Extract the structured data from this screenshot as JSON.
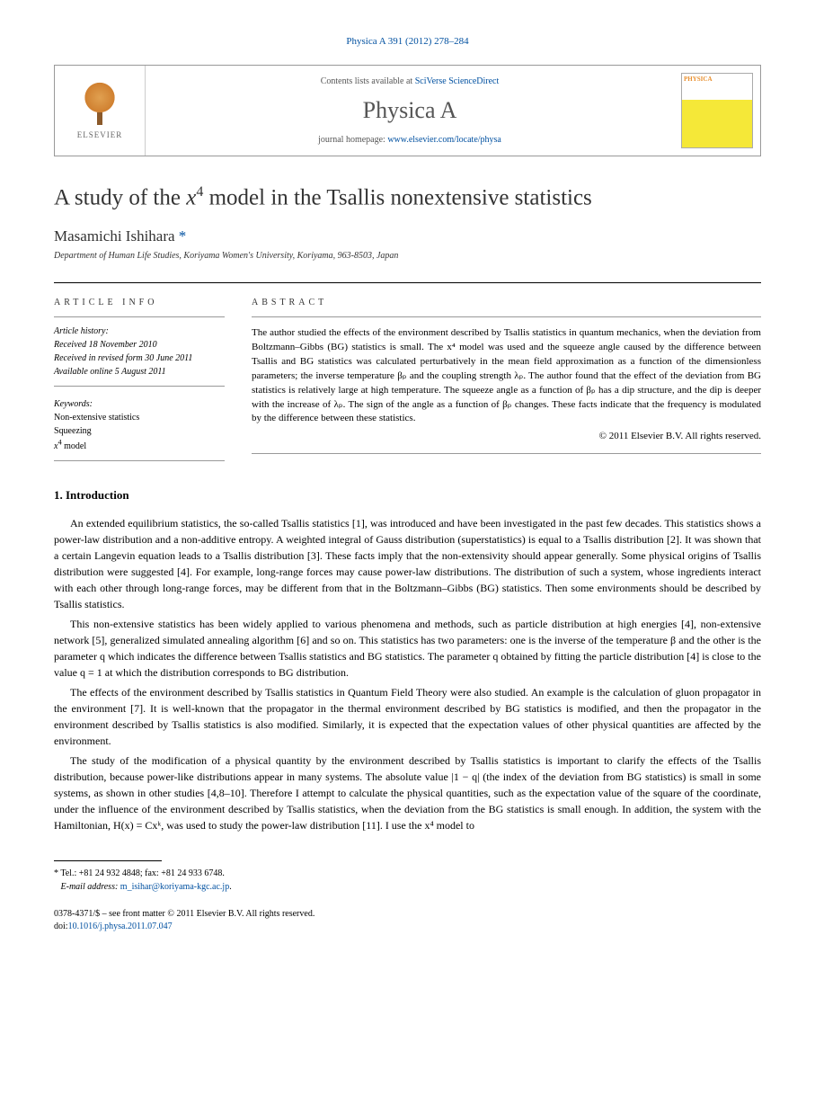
{
  "header": {
    "citation_link": "Physica A 391 (2012) 278–284",
    "contents_text": "Contents lists available at ",
    "contents_link": "SciVerse ScienceDirect",
    "journal_name": "Physica A",
    "homepage_text": "journal homepage: ",
    "homepage_link": "www.elsevier.com/locate/physa",
    "elsevier_label": "ELSEVIER",
    "cover_label": "PHYSICA"
  },
  "article": {
    "title_pre": "A study of the ",
    "title_var": "x",
    "title_sup": "4",
    "title_post": " model in the Tsallis nonextensive statistics",
    "author_name": "Masamichi Ishihara",
    "author_marker": "*",
    "affiliation": "Department of Human Life Studies, Koriyama Women's University, Koriyama, 963-8503, Japan"
  },
  "info": {
    "heading": "ARTICLE INFO",
    "history_label": "Article history:",
    "received": "Received 18 November 2010",
    "revised": "Received in revised form 30 June 2011",
    "online": "Available online 5 August 2011",
    "keywords_label": "Keywords:",
    "kw1": "Non-extensive statistics",
    "kw2": "Squeezing",
    "kw3_pre": "x",
    "kw3_sup": "4",
    "kw3_post": " model"
  },
  "abstract": {
    "heading": "ABSTRACT",
    "text": "The author studied the effects of the environment described by Tsallis statistics in quantum mechanics, when the deviation from Boltzmann–Gibbs (BG) statistics is small. The x⁴ model was used and the squeeze angle caused by the difference between Tsallis and BG statistics was calculated perturbatively in the mean field approximation as a function of the dimensionless parameters; the inverse temperature βₚ and the coupling strength λₚ. The author found that the effect of the deviation from BG statistics is relatively large at high temperature. The squeeze angle as a function of βₚ has a dip structure, and the dip is deeper with the increase of λₚ. The sign of the angle as a function of βₚ changes. These facts indicate that the frequency is modulated by the difference between these statistics.",
    "copyright": "© 2011 Elsevier B.V. All rights reserved."
  },
  "section1": {
    "heading": "1.  Introduction",
    "p1": "An extended equilibrium statistics, the so-called Tsallis statistics [1], was introduced and have been investigated in the past few decades. This statistics shows a power-law distribution and a non-additive entropy. A weighted integral of Gauss distribution (superstatistics) is equal to a Tsallis distribution [2]. It was shown that a certain Langevin equation leads to a Tsallis distribution [3]. These facts imply that the non-extensivity should appear generally. Some physical origins of Tsallis distribution were suggested [4]. For example, long-range forces may cause power-law distributions. The distribution of such a system, whose ingredients interact with each other through long-range forces, may be different from that in the Boltzmann–Gibbs (BG) statistics. Then some environments should be described by Tsallis statistics.",
    "p2": "This non-extensive statistics has been widely applied to various phenomena and methods, such as particle distribution at high energies [4], non-extensive network [5], generalized simulated annealing algorithm [6] and so on. This statistics has two parameters: one is the inverse of the temperature β and the other is the parameter q which indicates the difference between Tsallis statistics and BG statistics. The parameter q obtained by fitting the particle distribution [4] is close to the value q = 1 at which the distribution corresponds to BG distribution.",
    "p3": "The effects of the environment described by Tsallis statistics in Quantum Field Theory were also studied. An example is the calculation of gluon propagator in the environment [7]. It is well-known that the propagator in the thermal environment described by BG statistics is modified, and then the propagator in the environment described by Tsallis statistics is also modified. Similarly, it is expected that the expectation values of other physical quantities are affected by the environment.",
    "p4": "The study of the modification of a physical quantity by the environment described by Tsallis statistics is important to clarify the effects of the Tsallis distribution, because power-like distributions appear in many systems. The absolute value |1 − q| (the index of the deviation from BG statistics) is small in some systems, as shown in other studies [4,8–10]. Therefore I attempt to calculate the physical quantities, such as the expectation value of the square of the coordinate, under the influence of the environment described by Tsallis statistics, when the deviation from the BG statistics is small enough. In addition, the system with the Hamiltonian, H(x) = Cxᵏ, was used to study the power-law distribution [11]. I use the x⁴ model to"
  },
  "footnote": {
    "marker": "*",
    "tel": "Tel.: +81 24 932 4848; fax: +81 24 933 6748.",
    "email_label": "E-mail address: ",
    "email": "m_isihar@koriyama-kgc.ac.jp",
    "email_post": "."
  },
  "footer": {
    "line1": "0378-4371/$ – see front matter © 2011 Elsevier B.V. All rights reserved.",
    "doi_label": "doi:",
    "doi": "10.1016/j.physa.2011.07.047"
  }
}
